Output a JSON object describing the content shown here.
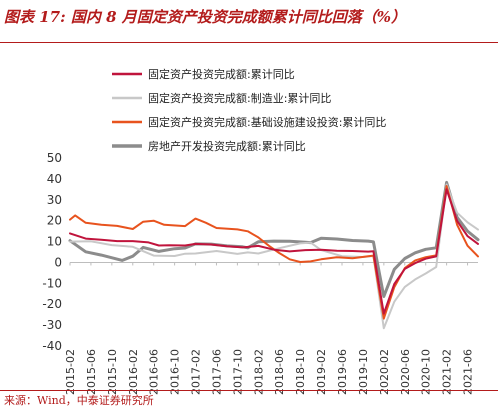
{
  "header": {
    "title": "图表 17:  国内 8 月固定资产投资完成额累计同比回落（%）"
  },
  "footer": {
    "source": "来源：Wind，中泰证券研究所"
  },
  "chart_data": {
    "type": "line",
    "title": "",
    "xlabel": "",
    "ylabel": "",
    "ylim": [
      -40,
      50
    ],
    "yticks": [
      50,
      40,
      30,
      20,
      10,
      0,
      -10,
      -20,
      -30,
      -40
    ],
    "x_tick_labels": [
      "2015-02",
      "2015-06",
      "2015-10",
      "2016-02",
      "2016-06",
      "2016-10",
      "2017-02",
      "2017-06",
      "2017-10",
      "2018-02",
      "2018-06",
      "2018-10",
      "2019-02",
      "2019-06",
      "2019-10",
      "2020-02",
      "2020-06",
      "2020-10",
      "2021-02",
      "2021-06"
    ],
    "x_start": "2015-02",
    "x_end": "2021-08",
    "legend_position": "top",
    "series": [
      {
        "name": "固定资产投资完成额:累计同比",
        "color": "#c0143c",
        "width": 2,
        "points": [
          [
            "2015-02",
            13.9
          ],
          [
            "2015-05",
            11.4
          ],
          [
            "2015-08",
            10.9
          ],
          [
            "2015-11",
            10.2
          ],
          [
            "2016-02",
            10.2
          ],
          [
            "2016-05",
            9.6
          ],
          [
            "2016-07",
            8.1
          ],
          [
            "2016-09",
            8.2
          ],
          [
            "2016-12",
            8.1
          ],
          [
            "2017-02",
            8.9
          ],
          [
            "2017-05",
            8.6
          ],
          [
            "2017-08",
            7.8
          ],
          [
            "2017-11",
            7.2
          ],
          [
            "2018-02",
            7.9
          ],
          [
            "2018-05",
            6.1
          ],
          [
            "2018-08",
            5.3
          ],
          [
            "2018-11",
            5.9
          ],
          [
            "2019-02",
            6.1
          ],
          [
            "2019-05",
            5.6
          ],
          [
            "2019-08",
            5.5
          ],
          [
            "2019-11",
            5.2
          ],
          [
            "2019-12",
            5.4
          ],
          [
            "2020-02",
            -24.5
          ],
          [
            "2020-04",
            -10.3
          ],
          [
            "2020-06",
            -3.1
          ],
          [
            "2020-08",
            -0.3
          ],
          [
            "2020-10",
            1.8
          ],
          [
            "2020-12",
            2.9
          ],
          [
            "2021-02",
            35.0
          ],
          [
            "2021-04",
            19.9
          ],
          [
            "2021-06",
            12.6
          ],
          [
            "2021-08",
            8.9
          ]
        ]
      },
      {
        "name": "固定资产投资完成额:制造业:累计同比",
        "color": "#c8c8c8",
        "width": 2,
        "points": [
          [
            "2015-02",
            10.0
          ],
          [
            "2015-06",
            10.1
          ],
          [
            "2015-10",
            8.3
          ],
          [
            "2016-02",
            7.5
          ],
          [
            "2016-06",
            3.3
          ],
          [
            "2016-10",
            3.1
          ],
          [
            "2016-12",
            4.2
          ],
          [
            "2017-02",
            4.3
          ],
          [
            "2017-06",
            5.5
          ],
          [
            "2017-10",
            4.1
          ],
          [
            "2017-12",
            4.8
          ],
          [
            "2018-02",
            4.3
          ],
          [
            "2018-06",
            6.8
          ],
          [
            "2018-10",
            9.1
          ],
          [
            "2018-12",
            9.5
          ],
          [
            "2019-02",
            5.9
          ],
          [
            "2019-06",
            3.0
          ],
          [
            "2019-10",
            2.6
          ],
          [
            "2019-12",
            3.1
          ],
          [
            "2020-02",
            -31.5
          ],
          [
            "2020-04",
            -18.8
          ],
          [
            "2020-06",
            -11.7
          ],
          [
            "2020-08",
            -8.1
          ],
          [
            "2020-10",
            -5.3
          ],
          [
            "2020-12",
            -2.2
          ],
          [
            "2021-02",
            37.3
          ],
          [
            "2021-04",
            23.8
          ],
          [
            "2021-06",
            19.2
          ],
          [
            "2021-08",
            15.7
          ]
        ]
      },
      {
        "name": "固定资产投资完成额:基础设施建设投资:累计同比",
        "color": "#e8531e",
        "width": 2,
        "points": [
          [
            "2015-02",
            20.5
          ],
          [
            "2015-03",
            22.5
          ],
          [
            "2015-05",
            19.0
          ],
          [
            "2015-08",
            18.0
          ],
          [
            "2015-11",
            17.5
          ],
          [
            "2016-02",
            16.0
          ],
          [
            "2016-04",
            19.5
          ],
          [
            "2016-06",
            20.0
          ],
          [
            "2016-08",
            18.0
          ],
          [
            "2016-12",
            17.4
          ],
          [
            "2017-02",
            21.0
          ],
          [
            "2017-04",
            19.0
          ],
          [
            "2017-06",
            16.5
          ],
          [
            "2017-10",
            15.8
          ],
          [
            "2017-12",
            14.9
          ],
          [
            "2018-02",
            12.0
          ],
          [
            "2018-04",
            8.0
          ],
          [
            "2018-06",
            4.5
          ],
          [
            "2018-08",
            1.5
          ],
          [
            "2018-10",
            0.2
          ],
          [
            "2018-12",
            0.5
          ],
          [
            "2019-02",
            1.5
          ],
          [
            "2019-05",
            2.5
          ],
          [
            "2019-08",
            2.0
          ],
          [
            "2019-11",
            3.0
          ],
          [
            "2019-12",
            3.3
          ],
          [
            "2020-02",
            -26.9
          ],
          [
            "2020-04",
            -11.8
          ],
          [
            "2020-06",
            -2.7
          ],
          [
            "2020-08",
            1.0
          ],
          [
            "2020-10",
            2.5
          ],
          [
            "2020-12",
            3.4
          ],
          [
            "2021-02",
            36.6
          ],
          [
            "2021-04",
            18.0
          ],
          [
            "2021-06",
            8.0
          ],
          [
            "2021-08",
            2.9
          ]
        ]
      },
      {
        "name": "房地产开发投资完成额:累计同比",
        "color": "#8c8c8c",
        "width": 3,
        "points": [
          [
            "2015-02",
            10.4
          ],
          [
            "2015-05",
            5.1
          ],
          [
            "2015-08",
            3.5
          ],
          [
            "2015-12",
            1.0
          ],
          [
            "2016-02",
            3.0
          ],
          [
            "2016-04",
            7.2
          ],
          [
            "2016-07",
            5.3
          ],
          [
            "2016-10",
            6.6
          ],
          [
            "2016-12",
            6.9
          ],
          [
            "2017-02",
            8.9
          ],
          [
            "2017-05",
            8.8
          ],
          [
            "2017-08",
            7.9
          ],
          [
            "2017-11",
            7.5
          ],
          [
            "2017-12",
            7.0
          ],
          [
            "2018-02",
            9.9
          ],
          [
            "2018-05",
            10.2
          ],
          [
            "2018-08",
            10.1
          ],
          [
            "2018-11",
            9.7
          ],
          [
            "2018-12",
            9.5
          ],
          [
            "2019-02",
            11.6
          ],
          [
            "2019-05",
            11.2
          ],
          [
            "2019-08",
            10.5
          ],
          [
            "2019-11",
            10.2
          ],
          [
            "2019-12",
            9.9
          ],
          [
            "2020-02",
            -16.3
          ],
          [
            "2020-04",
            -3.3
          ],
          [
            "2020-06",
            1.9
          ],
          [
            "2020-08",
            4.6
          ],
          [
            "2020-10",
            6.3
          ],
          [
            "2020-12",
            7.0
          ],
          [
            "2021-02",
            38.3
          ],
          [
            "2021-04",
            21.6
          ],
          [
            "2021-06",
            15.0
          ],
          [
            "2021-08",
            10.9
          ]
        ]
      }
    ]
  }
}
